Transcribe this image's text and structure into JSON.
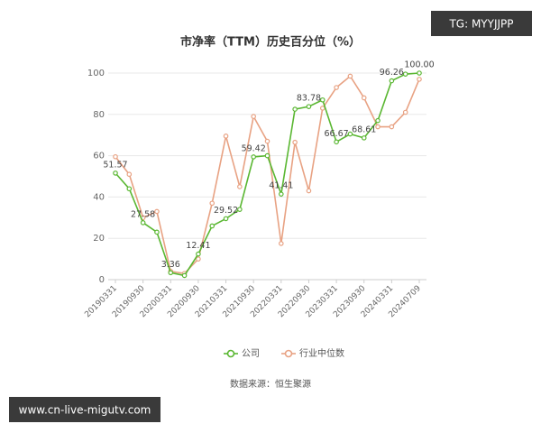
{
  "chart_data": {
    "type": "line",
    "title": "市净率（TTM）历史百分位（%）",
    "source": "数据来源：恒生聚源",
    "watermarks": [
      "TG: MYYJJPP",
      "www.cn-live-migutv.com"
    ],
    "categories": [
      "20190331",
      null,
      "20190930",
      null,
      "20200331",
      null,
      "20200930",
      null,
      "20210331",
      null,
      "20210930",
      null,
      "20220331",
      null,
      "20220930",
      null,
      "20230331",
      null,
      "20230930",
      null,
      "20240331",
      null,
      "20240709"
    ],
    "series": [
      {
        "name": "公司",
        "color": "#5ab732",
        "values": [
          51.57,
          44,
          27.58,
          23,
          3.36,
          2,
          12.41,
          26,
          29.52,
          34,
          59.42,
          60,
          41.41,
          82.5,
          83.78,
          87,
          66.67,
          70.5,
          68.61,
          77,
          96.26,
          99.5,
          100
        ],
        "value_labels": [
          "51.57",
          null,
          "27.58",
          null,
          "3.36",
          null,
          "12.41",
          null,
          "29.52",
          null,
          "59.42",
          null,
          "41.41",
          null,
          "83.78",
          null,
          "66.67",
          null,
          "68.61",
          null,
          "96.26",
          null,
          "100.00"
        ]
      },
      {
        "name": "行业中位数",
        "color": "#e8a283",
        "values": [
          59.5,
          51,
          30,
          33,
          4,
          3,
          10,
          37,
          69.5,
          45,
          79,
          67,
          17.5,
          66.5,
          43,
          83,
          93,
          98.5,
          88,
          74,
          74,
          81,
          97
        ]
      }
    ],
    "ylim": [
      0,
      100
    ],
    "yticks": [
      0,
      20,
      40,
      60,
      80,
      100
    ],
    "grid": true,
    "legend": "bottom"
  }
}
